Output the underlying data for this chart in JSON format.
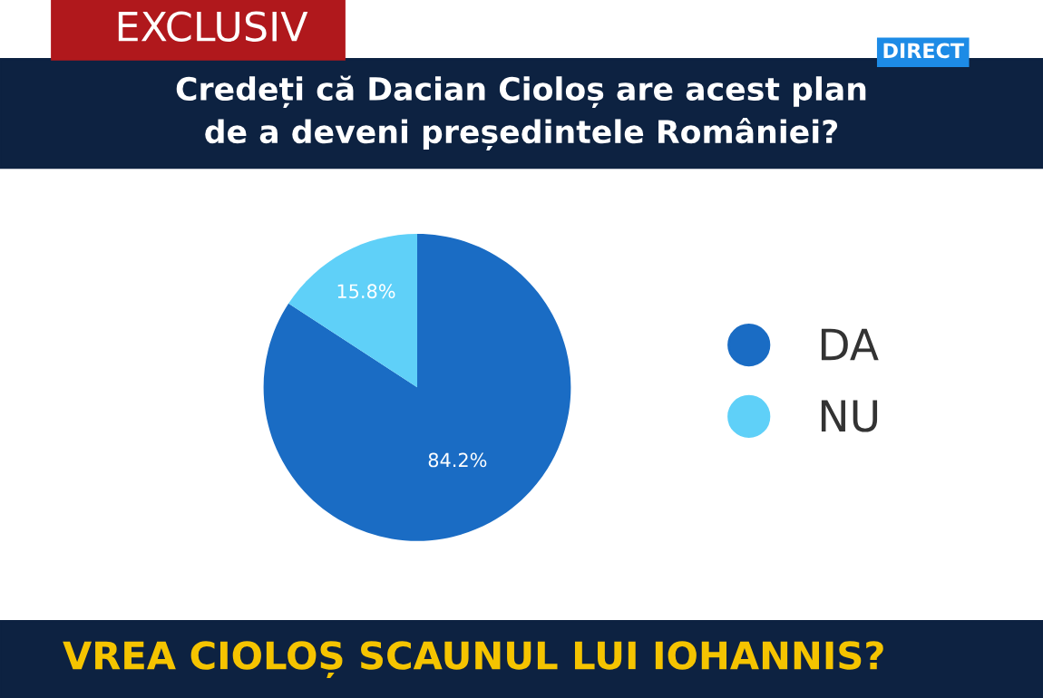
{
  "chart_data": {
    "type": "pie",
    "title": "Credeți că Dacian Cioloș are acest plan\nde a deveni președintele României?",
    "categories": [
      "DA",
      "NU"
    ],
    "values": [
      84.2,
      15.8
    ],
    "colors": [
      "#1a6cc4",
      "#5fd0f8"
    ],
    "value_labels": [
      "84.2%",
      "15.8%"
    ],
    "legend": "right",
    "annotations": [
      "EXCLUSIV",
      "DIRECT",
      "VREA CIOLOȘ SCAUNUL LUI IOHANNIS?"
    ]
  }
}
